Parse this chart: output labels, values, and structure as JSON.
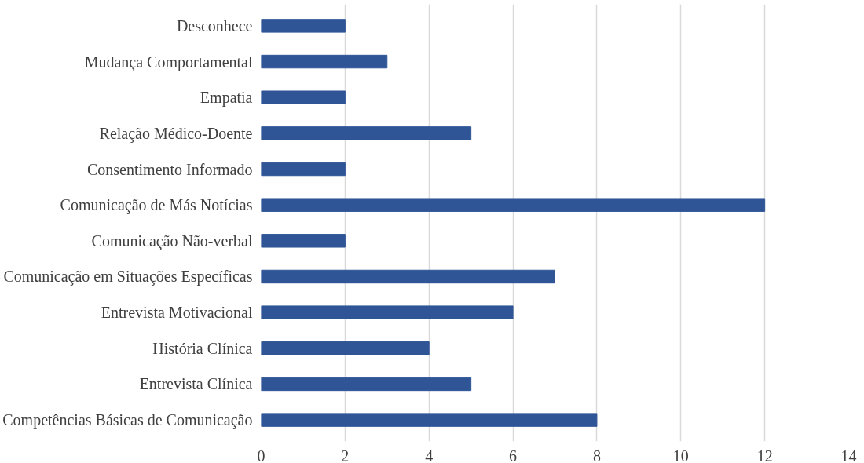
{
  "chart_data": {
    "type": "bar",
    "orientation": "horizontal",
    "categories": [
      "Desconhece",
      "Mudança Comportamental",
      "Empatia",
      "Relação Médico-Doente",
      "Consentimento Informado",
      "Comunicação de Más Notícias",
      "Comunicação Não-verbal",
      "Comunicação em Situações Específicas",
      "Entrevista Motivacional",
      "História Clínica",
      "Entrevista Clínica",
      "Competências Básicas de Comunicação"
    ],
    "values": [
      2,
      3,
      2,
      5,
      2,
      12,
      2,
      7,
      6,
      4,
      5,
      8
    ],
    "color": "#2f5597",
    "xlim": [
      0,
      14
    ],
    "xticks": [
      0,
      2,
      4,
      6,
      8,
      10,
      12,
      14
    ],
    "grid": "x"
  }
}
